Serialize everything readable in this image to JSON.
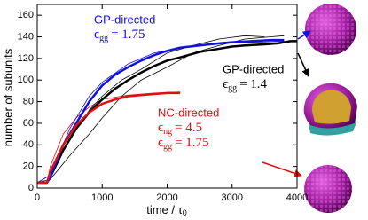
{
  "chart_data": {
    "type": "line",
    "x_label": "time / τ",
    "x_label_sub": "0",
    "y_label": "number of subunits",
    "xlim": [
      0,
      4000
    ],
    "xticks": [
      0,
      1000,
      2000,
      3000,
      4000
    ],
    "ylim": [
      0,
      170
    ],
    "yticks": [
      0,
      20,
      40,
      60,
      80,
      100,
      120,
      140,
      160
    ],
    "series": [
      {
        "color": "#e01010",
        "line_width": 0.8,
        "x": [
          0,
          150,
          200,
          400,
          600,
          800,
          1000,
          1400,
          1800,
          2200
        ],
        "values": [
          5,
          5,
          20,
          50,
          65,
          75,
          82,
          86,
          88,
          89
        ]
      },
      {
        "color": "#000000",
        "line_width": 0.8,
        "x": [
          0,
          200,
          500,
          800,
          1000,
          1300,
          1600,
          2000,
          2400,
          2800,
          3200,
          3600,
          3800
        ],
        "values": [
          5,
          8,
          30,
          50,
          65,
          85,
          100,
          112,
          125,
          132,
          138,
          140,
          141
        ]
      },
      {
        "color": "#000000",
        "line_width": 0.8,
        "x": [
          0,
          200,
          500,
          800,
          1000,
          1300,
          1600,
          2000,
          2400,
          2800,
          3200,
          3500
        ],
        "values": [
          5,
          12,
          45,
          72,
          85,
          100,
          110,
          125,
          132,
          138,
          141,
          140
        ]
      },
      {
        "color": "#1010e0",
        "line_width": 0.8,
        "x": [
          0,
          200,
          500,
          800,
          1000,
          1400,
          1800,
          2200,
          2800,
          3400,
          3800
        ],
        "values": [
          5,
          12,
          55,
          85,
          98,
          115,
          125,
          130,
          134,
          135,
          136
        ]
      },
      {
        "color": "#000000",
        "line_width": 2.5,
        "x": [
          0,
          150,
          200,
          400,
          600,
          800,
          1000,
          1200,
          1400,
          1600,
          1800,
          2000,
          2200,
          2500,
          2800,
          3000,
          3200,
          3500,
          3700,
          3800,
          3900,
          4000
        ],
        "values": [
          5,
          5,
          10,
          35,
          55,
          70,
          82,
          92,
          100,
          107,
          113,
          118,
          121,
          126,
          129,
          131,
          132,
          133,
          134,
          135,
          136,
          136
        ]
      },
      {
        "color": "#1010e0",
        "line_width": 2.5,
        "x": [
          0,
          150,
          200,
          400,
          600,
          800,
          1000,
          1200,
          1400,
          1600,
          1800,
          2000,
          2200,
          2500,
          2800,
          3000,
          3300,
          3600,
          3800
        ],
        "values": [
          5,
          5,
          10,
          40,
          60,
          80,
          95,
          105,
          112,
          118,
          123,
          127,
          130,
          132,
          134,
          135,
          136,
          137,
          137
        ]
      },
      {
        "color": "#e01010",
        "line_width": 2.5,
        "x": [
          0,
          150,
          200,
          400,
          600,
          800,
          1000,
          1200,
          1400,
          1600,
          1800,
          2000,
          2200
        ],
        "values": [
          5,
          5,
          15,
          40,
          58,
          70,
          78,
          82,
          85,
          86,
          87,
          88,
          88
        ]
      }
    ],
    "annotations": [
      {
        "color": "#1010e0",
        "label": "GP-directed",
        "terms": [
          {
            "eps": "ϵ",
            "sub": "gg",
            "value": "= 1.75"
          }
        ]
      },
      {
        "color": "#000000",
        "label": "GP-directed",
        "terms": [
          {
            "eps": "ϵ",
            "sub": "gg",
            "value": "= 1.4"
          }
        ]
      },
      {
        "color": "#e01010",
        "label": "NC-directed",
        "terms": [
          {
            "eps": "ϵ",
            "sub": "ng",
            "value": "= 4.5"
          },
          {
            "eps": "ϵ",
            "sub": "gg",
            "value": "= 1.75"
          }
        ]
      }
    ]
  }
}
